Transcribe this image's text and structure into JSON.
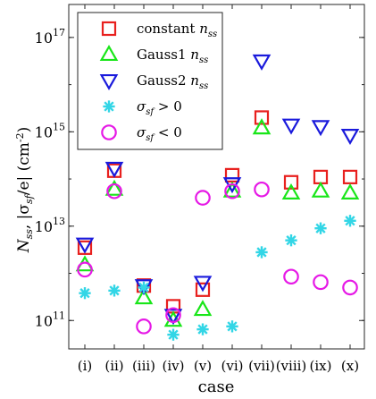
{
  "chart_data": {
    "type": "scatter",
    "xlabel": "case",
    "ylabel": {
      "base": "N",
      "base_sub": "ss",
      "mid": ", |σ",
      "mid_sub": "sf",
      "tail": "/e| (cm",
      "tail_sup": "-2",
      "end": ")"
    },
    "yscale": "log",
    "ylim": [
      25000000000.0,
      5e+17
    ],
    "yticks": [
      {
        "value": 100000000000.0,
        "base": "10",
        "exp": "11"
      },
      {
        "value": 10000000000000.0,
        "base": "10",
        "exp": "13"
      },
      {
        "value": 1000000000000000.0,
        "base": "10",
        "exp": "15"
      },
      {
        "value": 1e+17,
        "base": "10",
        "exp": "17"
      }
    ],
    "categories": [
      "(i)",
      "(ii)",
      "(iii)",
      "(iv)",
      "(v)",
      "(vi)",
      "(vii)",
      "(viii)",
      "(ix)",
      "(x)"
    ],
    "legend_position": "top-left",
    "series": [
      {
        "name": "constant  n",
        "name_sub": "ss",
        "marker": "square",
        "color": "#e8201e",
        "values": [
          3500000000000.0,
          150000000000000.0,
          550000000000.0,
          200000000000.0,
          450000000000.0,
          120000000000000.0,
          2000000000000000.0,
          85000000000000.0,
          110000000000000.0,
          110000000000000.0
        ]
      },
      {
        "name": "Gauss1  n",
        "name_sub": "ss",
        "marker": "triangle-up",
        "color": "#19e619",
        "values": [
          1500000000000.0,
          60000000000000.0,
          300000000000.0,
          100000000000.0,
          170000000000.0,
          55000000000000.0,
          1200000000000000.0,
          50000000000000.0,
          55000000000000.0,
          50000000000000.0
        ]
      },
      {
        "name": "Gauss2  n",
        "name_sub": "ss",
        "marker": "triangle-down",
        "color": "#1a1adc",
        "values": [
          4200000000000.0,
          170000000000000.0,
          550000000000.0,
          130000000000.0,
          650000000000.0,
          80000000000000.0,
          3.2e+16,
          1400000000000000.0,
          1300000000000000.0,
          850000000000000.0
        ]
      },
      {
        "name": "σ",
        "name_sub": "sf",
        "name_tail": " > 0",
        "marker": "asterisk",
        "color": "#33d6e6",
        "values": [
          380000000000.0,
          430000000000.0,
          500000000000.0,
          50000000000.0,
          65000000000.0,
          75000000000.0,
          2800000000000.0,
          5000000000000.0,
          9000000000000.0,
          13000000000000.0
        ]
      },
      {
        "name": "σ",
        "name_sub": "sf",
        "name_tail": " < 0",
        "marker": "circle",
        "color": "#e619e6",
        "values": [
          1200000000000.0,
          55000000000000.0,
          75000000000.0,
          130000000000.0,
          40000000000000.0,
          55000000000000.0,
          60000000000000.0,
          850000000000.0,
          650000000000.0,
          500000000000.0
        ]
      }
    ]
  }
}
